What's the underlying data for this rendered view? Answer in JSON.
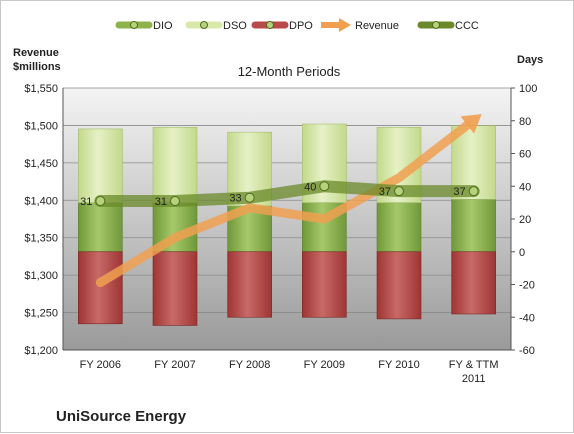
{
  "chart_data": {
    "type": "bar",
    "title": "12-Month Periods",
    "company": "UniSource Energy",
    "left_axis_label": "Revenue\n$millions",
    "right_axis_label": "Days",
    "left_axis": {
      "min": 1200,
      "max": 1550,
      "step": 50,
      "prefix": "$"
    },
    "right_axis": {
      "min": -60,
      "max": 100,
      "step": 20
    },
    "categories": [
      "FY 2006",
      "FY 2007",
      "FY 2008",
      "FY 2009",
      "FY 2010",
      "FY & TTM 2011"
    ],
    "series": [
      {
        "name": "DIO",
        "kind": "stacked-bar-positive",
        "color": "#8db34a",
        "values": [
          30,
          30,
          28,
          30,
          30,
          32
        ]
      },
      {
        "name": "DSO",
        "kind": "stacked-bar-positive",
        "color": "#d7e8a8",
        "values": [
          45,
          46,
          45,
          48,
          46,
          45
        ]
      },
      {
        "name": "DPO",
        "kind": "stacked-bar-negative",
        "color": "#b84a49",
        "values": [
          44,
          45,
          40,
          40,
          41,
          38
        ]
      },
      {
        "name": "Revenue",
        "kind": "arrow-line",
        "axis": "left",
        "color": "#f0a050",
        "values": [
          1290,
          1350,
          1390,
          1375,
          1430,
          1507
        ]
      },
      {
        "name": "CCC",
        "kind": "line",
        "axis": "right",
        "color": "#6a8a2a",
        "values": [
          31,
          31,
          33,
          40,
          37,
          37
        ],
        "labels": [
          "31",
          "31",
          "33",
          "40",
          "37",
          "37"
        ]
      }
    ],
    "legend": {
      "position": "top",
      "items": [
        "DIO",
        "DSO",
        "DPO",
        "Revenue",
        "CCC"
      ]
    },
    "grid": true
  }
}
